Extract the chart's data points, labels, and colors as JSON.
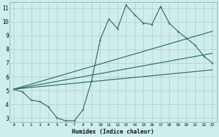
{
  "xlabel": "Humidex (Indice chaleur)",
  "background_color": "#cdeeed",
  "grid_color": "#bbcccc",
  "line_color": "#2d7068",
  "xlim": [
    -0.5,
    23.5
  ],
  "ylim": [
    2.7,
    11.4
  ],
  "yticks": [
    3,
    4,
    5,
    6,
    7,
    8,
    9,
    10,
    11
  ],
  "xticks": [
    0,
    1,
    2,
    3,
    4,
    5,
    6,
    7,
    8,
    9,
    10,
    11,
    12,
    13,
    14,
    15,
    16,
    17,
    18,
    19,
    20,
    21,
    22,
    23
  ],
  "line1_x": [
    0,
    1,
    2,
    3,
    4,
    5,
    6,
    7,
    8,
    9,
    10,
    11,
    12,
    13,
    14,
    15,
    16,
    17,
    18,
    19,
    20,
    21,
    22,
    23
  ],
  "line1_y": [
    5.1,
    4.9,
    4.3,
    4.2,
    3.8,
    3.0,
    2.8,
    2.8,
    3.6,
    5.7,
    8.7,
    10.2,
    9.5,
    11.2,
    10.5,
    9.9,
    9.8,
    11.1,
    9.9,
    9.3,
    8.8,
    8.3,
    7.5,
    7.0
  ],
  "line2_x": [
    0,
    23
  ],
  "line2_y": [
    5.1,
    9.3
  ],
  "line3_x": [
    0,
    23
  ],
  "line3_y": [
    5.1,
    7.7
  ],
  "line4_x": [
    0,
    23
  ],
  "line4_y": [
    5.1,
    6.5
  ]
}
